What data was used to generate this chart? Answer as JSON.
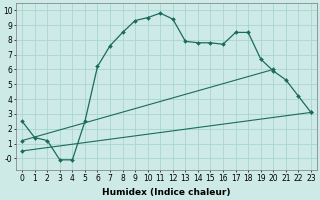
{
  "xlabel": "Humidex (Indice chaleur)",
  "background_color": "#ceeae7",
  "grid_color": "#a8d5d1",
  "line_color": "#1a6b5e",
  "series1_x": [
    0,
    1,
    2,
    3,
    4,
    5,
    6,
    7,
    8,
    9,
    10,
    11,
    12,
    13,
    14,
    15,
    16,
    17,
    18,
    19,
    20,
    21,
    22,
    23
  ],
  "series1_y": [
    2.5,
    1.4,
    1.2,
    -0.1,
    -0.1,
    2.5,
    6.2,
    7.6,
    8.5,
    9.3,
    9.5,
    9.8,
    9.4,
    7.9,
    7.8,
    7.8,
    7.7,
    8.5,
    8.5,
    6.7,
    5.9,
    5.3,
    4.2,
    3.1
  ],
  "series2_x": [
    0,
    23
  ],
  "series2_y": [
    0.5,
    3.1
  ],
  "series3_x": [
    0,
    20
  ],
  "series3_y": [
    1.2,
    6.0
  ],
  "ylim": [
    -0.8,
    10.5
  ],
  "xlim": [
    -0.5,
    23.5
  ],
  "yticks": [
    0,
    1,
    2,
    3,
    4,
    5,
    6,
    7,
    8,
    9,
    10
  ],
  "xticks": [
    0,
    1,
    2,
    3,
    4,
    5,
    6,
    7,
    8,
    9,
    10,
    11,
    12,
    13,
    14,
    15,
    16,
    17,
    18,
    19,
    20,
    21,
    22,
    23
  ],
  "label_fontsize": 6.5,
  "tick_fontsize": 5.5
}
